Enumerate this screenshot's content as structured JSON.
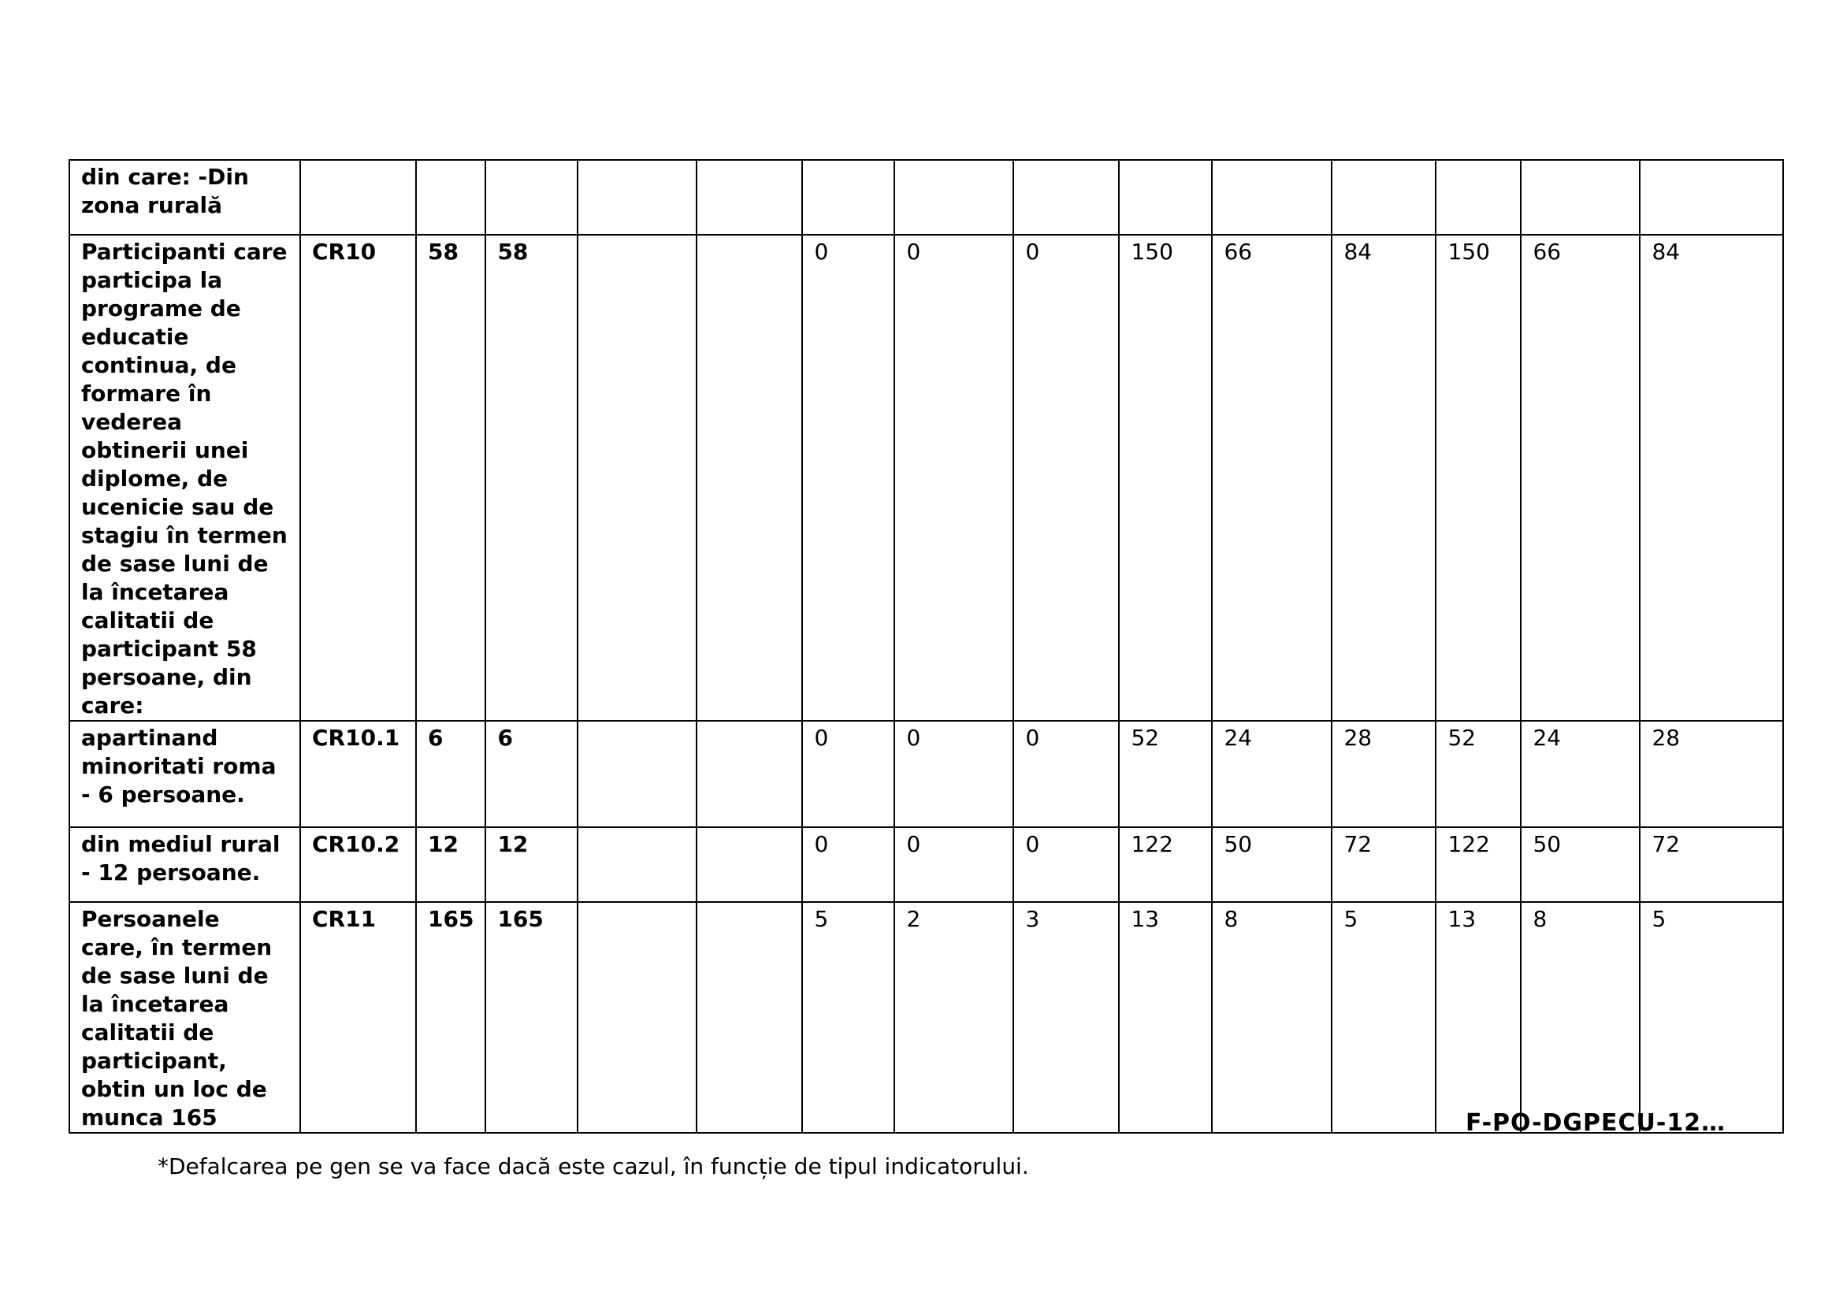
{
  "table": {
    "rows": [
      {
        "label": "din care: -Din zona rurală",
        "code": "",
        "v1": "",
        "v2": "",
        "cells": [
          "",
          "",
          "",
          "",
          "",
          "",
          "",
          "",
          "",
          "",
          "",
          ""
        ]
      },
      {
        "label": "Participanti care participa la programe de educatie continua, de formare în vederea obtinerii unei diplome, de ucenicie sau de stagiu în termen de sase luni de la încetarea calitatii de participant 58 persoane, din care:",
        "code": "CR10",
        "v1": "58",
        "v2": "58",
        "cells": [
          "",
          "",
          "0",
          "0",
          "0",
          "150",
          "66",
          "84",
          "150",
          "66",
          "84"
        ]
      },
      {
        "label": "apartinand minoritati roma - 6 persoane.",
        "code": "CR10.1",
        "v1": "6",
        "v2": "6",
        "cells": [
          "",
          "",
          "0",
          "0",
          "0",
          "52",
          "24",
          "28",
          "52",
          "24",
          "28"
        ]
      },
      {
        "label": "din mediul rural - 12 persoane.",
        "code": "CR10.2",
        "v1": "12",
        "v2": "12",
        "cells": [
          "",
          "",
          "0",
          "0",
          "0",
          "122",
          "50",
          "72",
          "122",
          "50",
          "72"
        ]
      },
      {
        "label": "Persoanele care, în termen de sase luni de la încetarea calitatii de participant, obtin un loc de munca 165",
        "code": "CR11",
        "v1": "165",
        "v2": "165",
        "cells": [
          "",
          "",
          "5",
          "2",
          "3",
          "13",
          "8",
          "5",
          "13",
          "8",
          "5"
        ]
      }
    ]
  },
  "footer": {
    "form_code": "F-PO-DGPECU-12…",
    "note": "*Defalcarea pe gen se va face dacă este cazul, în funcție de tipul indicatorului."
  }
}
